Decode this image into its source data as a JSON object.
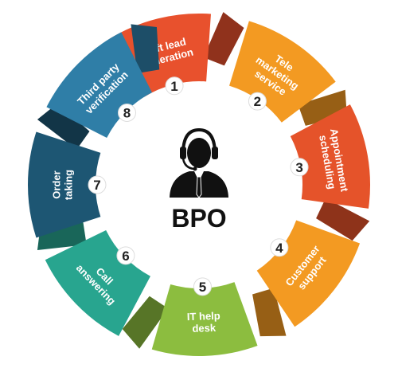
{
  "center": {
    "title": "BPO",
    "icon": "call-center-agent-headset-icon"
  },
  "segments": [
    {
      "number": "1",
      "lines": [
        "Soft lead",
        "generation"
      ],
      "color": "#e8512d"
    },
    {
      "number": "2",
      "lines": [
        "Tele",
        "marketing",
        "service"
      ],
      "color": "#f39a22"
    },
    {
      "number": "3",
      "lines": [
        "Appointment",
        "scheduling"
      ],
      "color": "#e5532a"
    },
    {
      "number": "4",
      "lines": [
        "Customer",
        "support"
      ],
      "color": "#f39a22"
    },
    {
      "number": "5",
      "lines": [
        "IT help",
        "desk"
      ],
      "color": "#8cbd3f"
    },
    {
      "number": "6",
      "lines": [
        "Call",
        "answering"
      ],
      "color": "#28a58f"
    },
    {
      "number": "7",
      "lines": [
        "Order",
        "taking"
      ],
      "color": "#1d5673"
    },
    {
      "number": "8",
      "lines": [
        "Third party",
        "verification"
      ],
      "color": "#2f7ea7"
    }
  ]
}
